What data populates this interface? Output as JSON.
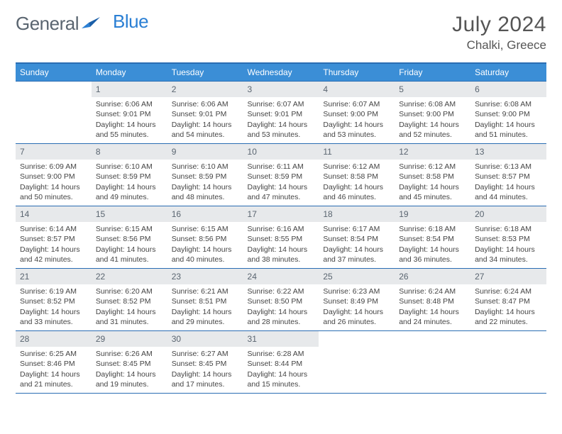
{
  "brand": {
    "part1": "General",
    "part2": "Blue"
  },
  "title": "July 2024",
  "location": "Chalki, Greece",
  "colors": {
    "header_bg": "#3b8ed6",
    "header_border": "#2a6db3",
    "daynum_bg": "#e7e9eb",
    "text": "#444444",
    "brand_gray": "#5a6570",
    "brand_blue": "#2a7fd4"
  },
  "weekdays": [
    "Sunday",
    "Monday",
    "Tuesday",
    "Wednesday",
    "Thursday",
    "Friday",
    "Saturday"
  ],
  "first_weekday_index": 1,
  "days_in_month": 31,
  "days": {
    "1": {
      "sunrise": "6:06 AM",
      "sunset": "9:01 PM",
      "daylight": "14 hours and 55 minutes."
    },
    "2": {
      "sunrise": "6:06 AM",
      "sunset": "9:01 PM",
      "daylight": "14 hours and 54 minutes."
    },
    "3": {
      "sunrise": "6:07 AM",
      "sunset": "9:01 PM",
      "daylight": "14 hours and 53 minutes."
    },
    "4": {
      "sunrise": "6:07 AM",
      "sunset": "9:00 PM",
      "daylight": "14 hours and 53 minutes."
    },
    "5": {
      "sunrise": "6:08 AM",
      "sunset": "9:00 PM",
      "daylight": "14 hours and 52 minutes."
    },
    "6": {
      "sunrise": "6:08 AM",
      "sunset": "9:00 PM",
      "daylight": "14 hours and 51 minutes."
    },
    "7": {
      "sunrise": "6:09 AM",
      "sunset": "9:00 PM",
      "daylight": "14 hours and 50 minutes."
    },
    "8": {
      "sunrise": "6:10 AM",
      "sunset": "8:59 PM",
      "daylight": "14 hours and 49 minutes."
    },
    "9": {
      "sunrise": "6:10 AM",
      "sunset": "8:59 PM",
      "daylight": "14 hours and 48 minutes."
    },
    "10": {
      "sunrise": "6:11 AM",
      "sunset": "8:59 PM",
      "daylight": "14 hours and 47 minutes."
    },
    "11": {
      "sunrise": "6:12 AM",
      "sunset": "8:58 PM",
      "daylight": "14 hours and 46 minutes."
    },
    "12": {
      "sunrise": "6:12 AM",
      "sunset": "8:58 PM",
      "daylight": "14 hours and 45 minutes."
    },
    "13": {
      "sunrise": "6:13 AM",
      "sunset": "8:57 PM",
      "daylight": "14 hours and 44 minutes."
    },
    "14": {
      "sunrise": "6:14 AM",
      "sunset": "8:57 PM",
      "daylight": "14 hours and 42 minutes."
    },
    "15": {
      "sunrise": "6:15 AM",
      "sunset": "8:56 PM",
      "daylight": "14 hours and 41 minutes."
    },
    "16": {
      "sunrise": "6:15 AM",
      "sunset": "8:56 PM",
      "daylight": "14 hours and 40 minutes."
    },
    "17": {
      "sunrise": "6:16 AM",
      "sunset": "8:55 PM",
      "daylight": "14 hours and 38 minutes."
    },
    "18": {
      "sunrise": "6:17 AM",
      "sunset": "8:54 PM",
      "daylight": "14 hours and 37 minutes."
    },
    "19": {
      "sunrise": "6:18 AM",
      "sunset": "8:54 PM",
      "daylight": "14 hours and 36 minutes."
    },
    "20": {
      "sunrise": "6:18 AM",
      "sunset": "8:53 PM",
      "daylight": "14 hours and 34 minutes."
    },
    "21": {
      "sunrise": "6:19 AM",
      "sunset": "8:52 PM",
      "daylight": "14 hours and 33 minutes."
    },
    "22": {
      "sunrise": "6:20 AM",
      "sunset": "8:52 PM",
      "daylight": "14 hours and 31 minutes."
    },
    "23": {
      "sunrise": "6:21 AM",
      "sunset": "8:51 PM",
      "daylight": "14 hours and 29 minutes."
    },
    "24": {
      "sunrise": "6:22 AM",
      "sunset": "8:50 PM",
      "daylight": "14 hours and 28 minutes."
    },
    "25": {
      "sunrise": "6:23 AM",
      "sunset": "8:49 PM",
      "daylight": "14 hours and 26 minutes."
    },
    "26": {
      "sunrise": "6:24 AM",
      "sunset": "8:48 PM",
      "daylight": "14 hours and 24 minutes."
    },
    "27": {
      "sunrise": "6:24 AM",
      "sunset": "8:47 PM",
      "daylight": "14 hours and 22 minutes."
    },
    "28": {
      "sunrise": "6:25 AM",
      "sunset": "8:46 PM",
      "daylight": "14 hours and 21 minutes."
    },
    "29": {
      "sunrise": "6:26 AM",
      "sunset": "8:45 PM",
      "daylight": "14 hours and 19 minutes."
    },
    "30": {
      "sunrise": "6:27 AM",
      "sunset": "8:45 PM",
      "daylight": "14 hours and 17 minutes."
    },
    "31": {
      "sunrise": "6:28 AM",
      "sunset": "8:44 PM",
      "daylight": "14 hours and 15 minutes."
    }
  },
  "labels": {
    "sunrise": "Sunrise:",
    "sunset": "Sunset:",
    "daylight": "Daylight:"
  }
}
